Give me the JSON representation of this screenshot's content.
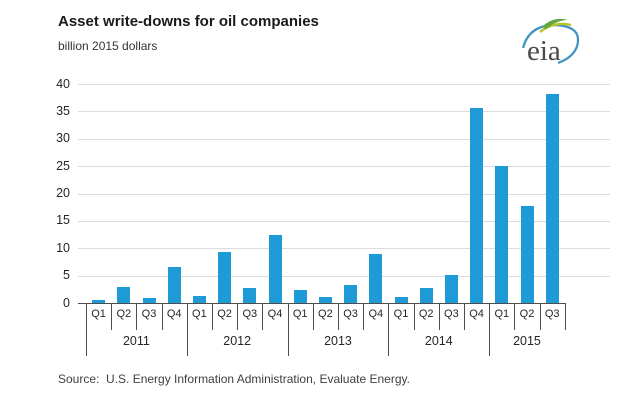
{
  "header": {
    "title": "Asset write-downs for oil companies",
    "subtitle": "billion 2015 dollars",
    "logo_text": "eia"
  },
  "source_line": "Source:  U.S. Energy Information Administration, Evaluate Energy.",
  "colors": {
    "bar": "#1e9ad6",
    "gridline": "#dcdcdc",
    "axis": "#4d4d4d",
    "text": "#262626",
    "logo_green": "#62a744",
    "logo_olive": "#b9c227",
    "logo_blue": "#4093c4",
    "logo_text_gray": "#4a4a4a"
  },
  "chart_data": {
    "type": "bar",
    "title": "Asset write-downs for oil companies",
    "ylabel": "billion 2015 dollars",
    "ylim": [
      0,
      40
    ],
    "yticks": [
      0,
      5,
      10,
      15,
      20,
      25,
      30,
      35,
      40
    ],
    "grid": "horizontal",
    "legend": "none",
    "groups": [
      {
        "year": "2011",
        "quarters": [
          "Q1",
          "Q2",
          "Q3",
          "Q4"
        ],
        "values": [
          0.7,
          3.0,
          1.1,
          6.7
        ]
      },
      {
        "year": "2012",
        "quarters": [
          "Q1",
          "Q2",
          "Q3",
          "Q4"
        ],
        "values": [
          1.3,
          9.4,
          2.8,
          12.6
        ]
      },
      {
        "year": "2013",
        "quarters": [
          "Q1",
          "Q2",
          "Q3",
          "Q4"
        ],
        "values": [
          2.4,
          1.2,
          3.4,
          9.1
        ]
      },
      {
        "year": "2014",
        "quarters": [
          "Q1",
          "Q2",
          "Q3",
          "Q4"
        ],
        "values": [
          1.2,
          2.9,
          5.3,
          35.8
        ]
      },
      {
        "year": "2015",
        "quarters": [
          "Q1",
          "Q2",
          "Q3"
        ],
        "values": [
          25.2,
          17.9,
          38.2
        ]
      }
    ]
  }
}
